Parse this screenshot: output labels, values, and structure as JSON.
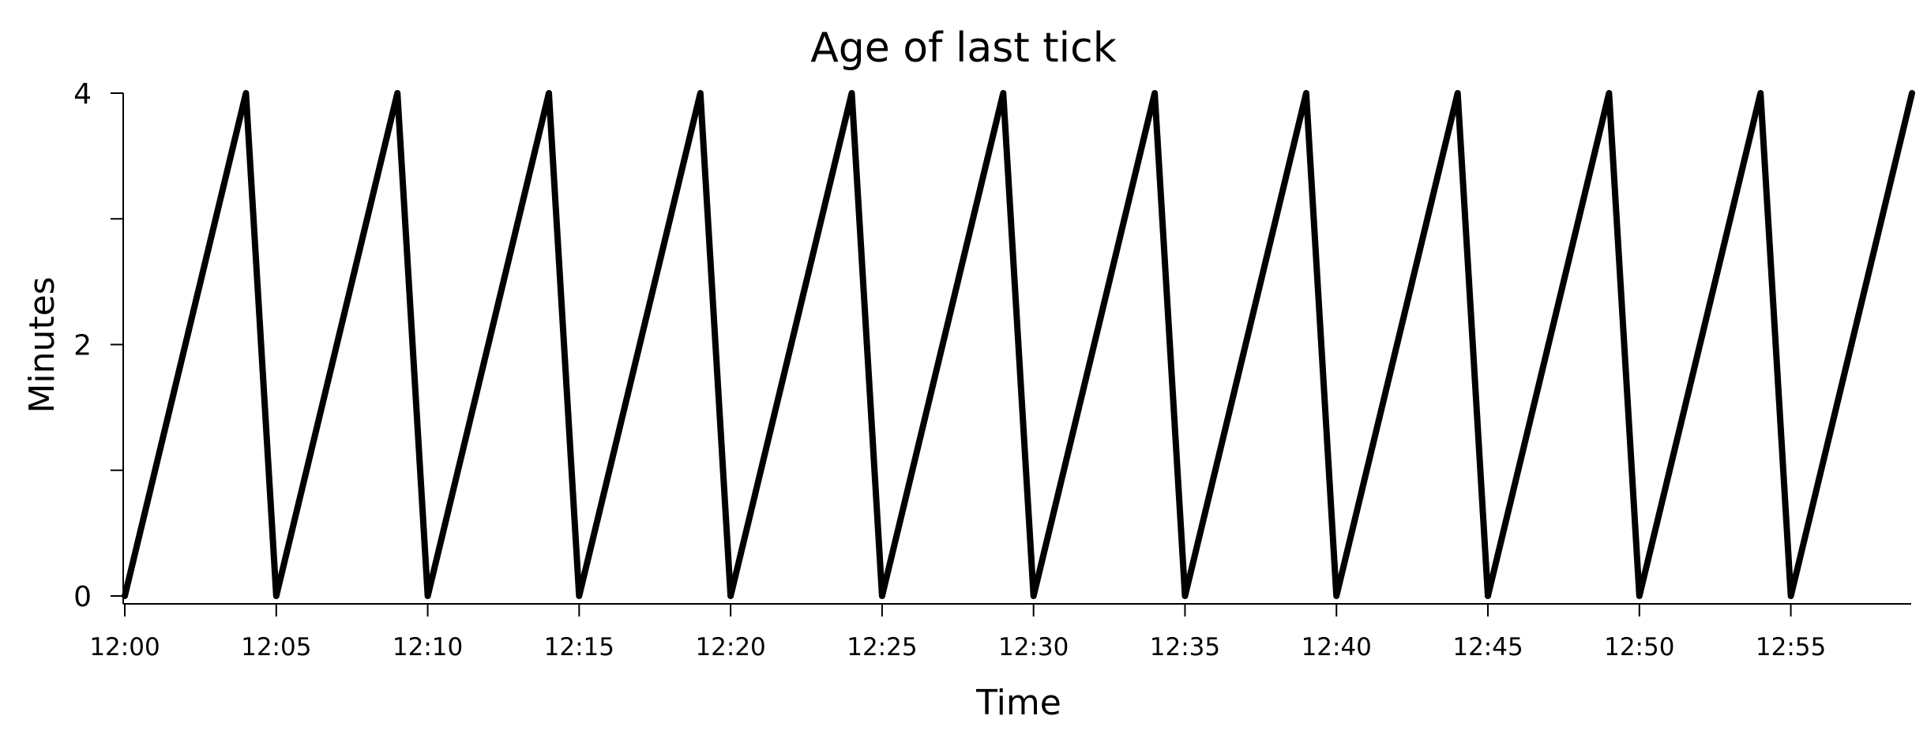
{
  "chart_data": {
    "type": "line",
    "title": "Age of last tick",
    "xlabel": "Time",
    "ylabel": "Minutes",
    "x_tick_labels": [
      "12:00",
      "12:05",
      "12:10",
      "12:15",
      "12:20",
      "12:25",
      "12:30",
      "12:35",
      "12:40",
      "12:45",
      "12:50",
      "12:55"
    ],
    "y_ticks": [
      0,
      1,
      2,
      3,
      4
    ],
    "y_tick_labels": [
      "0",
      "",
      "2",
      "",
      "4"
    ],
    "xlim": [
      "12:00",
      "12:59"
    ],
    "ylim": [
      0,
      4
    ],
    "grid": false,
    "legend": "none",
    "line_color": "#000000",
    "series": [
      {
        "points": [
          {
            "x": "12:00",
            "y": 0
          },
          {
            "x": "12:04",
            "y": 4
          },
          {
            "x": "12:05",
            "y": 0
          },
          {
            "x": "12:09",
            "y": 4
          },
          {
            "x": "12:10",
            "y": 0
          },
          {
            "x": "12:14",
            "y": 4
          },
          {
            "x": "12:15",
            "y": 0
          },
          {
            "x": "12:19",
            "y": 4
          },
          {
            "x": "12:20",
            "y": 0
          },
          {
            "x": "12:24",
            "y": 4
          },
          {
            "x": "12:25",
            "y": 0
          },
          {
            "x": "12:29",
            "y": 4
          },
          {
            "x": "12:30",
            "y": 0
          },
          {
            "x": "12:34",
            "y": 4
          },
          {
            "x": "12:35",
            "y": 0
          },
          {
            "x": "12:39",
            "y": 4
          },
          {
            "x": "12:40",
            "y": 0
          },
          {
            "x": "12:44",
            "y": 4
          },
          {
            "x": "12:45",
            "y": 0
          },
          {
            "x": "12:49",
            "y": 4
          },
          {
            "x": "12:50",
            "y": 0
          },
          {
            "x": "12:54",
            "y": 4
          },
          {
            "x": "12:55",
            "y": 0
          },
          {
            "x": "12:59",
            "y": 4
          }
        ]
      }
    ]
  }
}
